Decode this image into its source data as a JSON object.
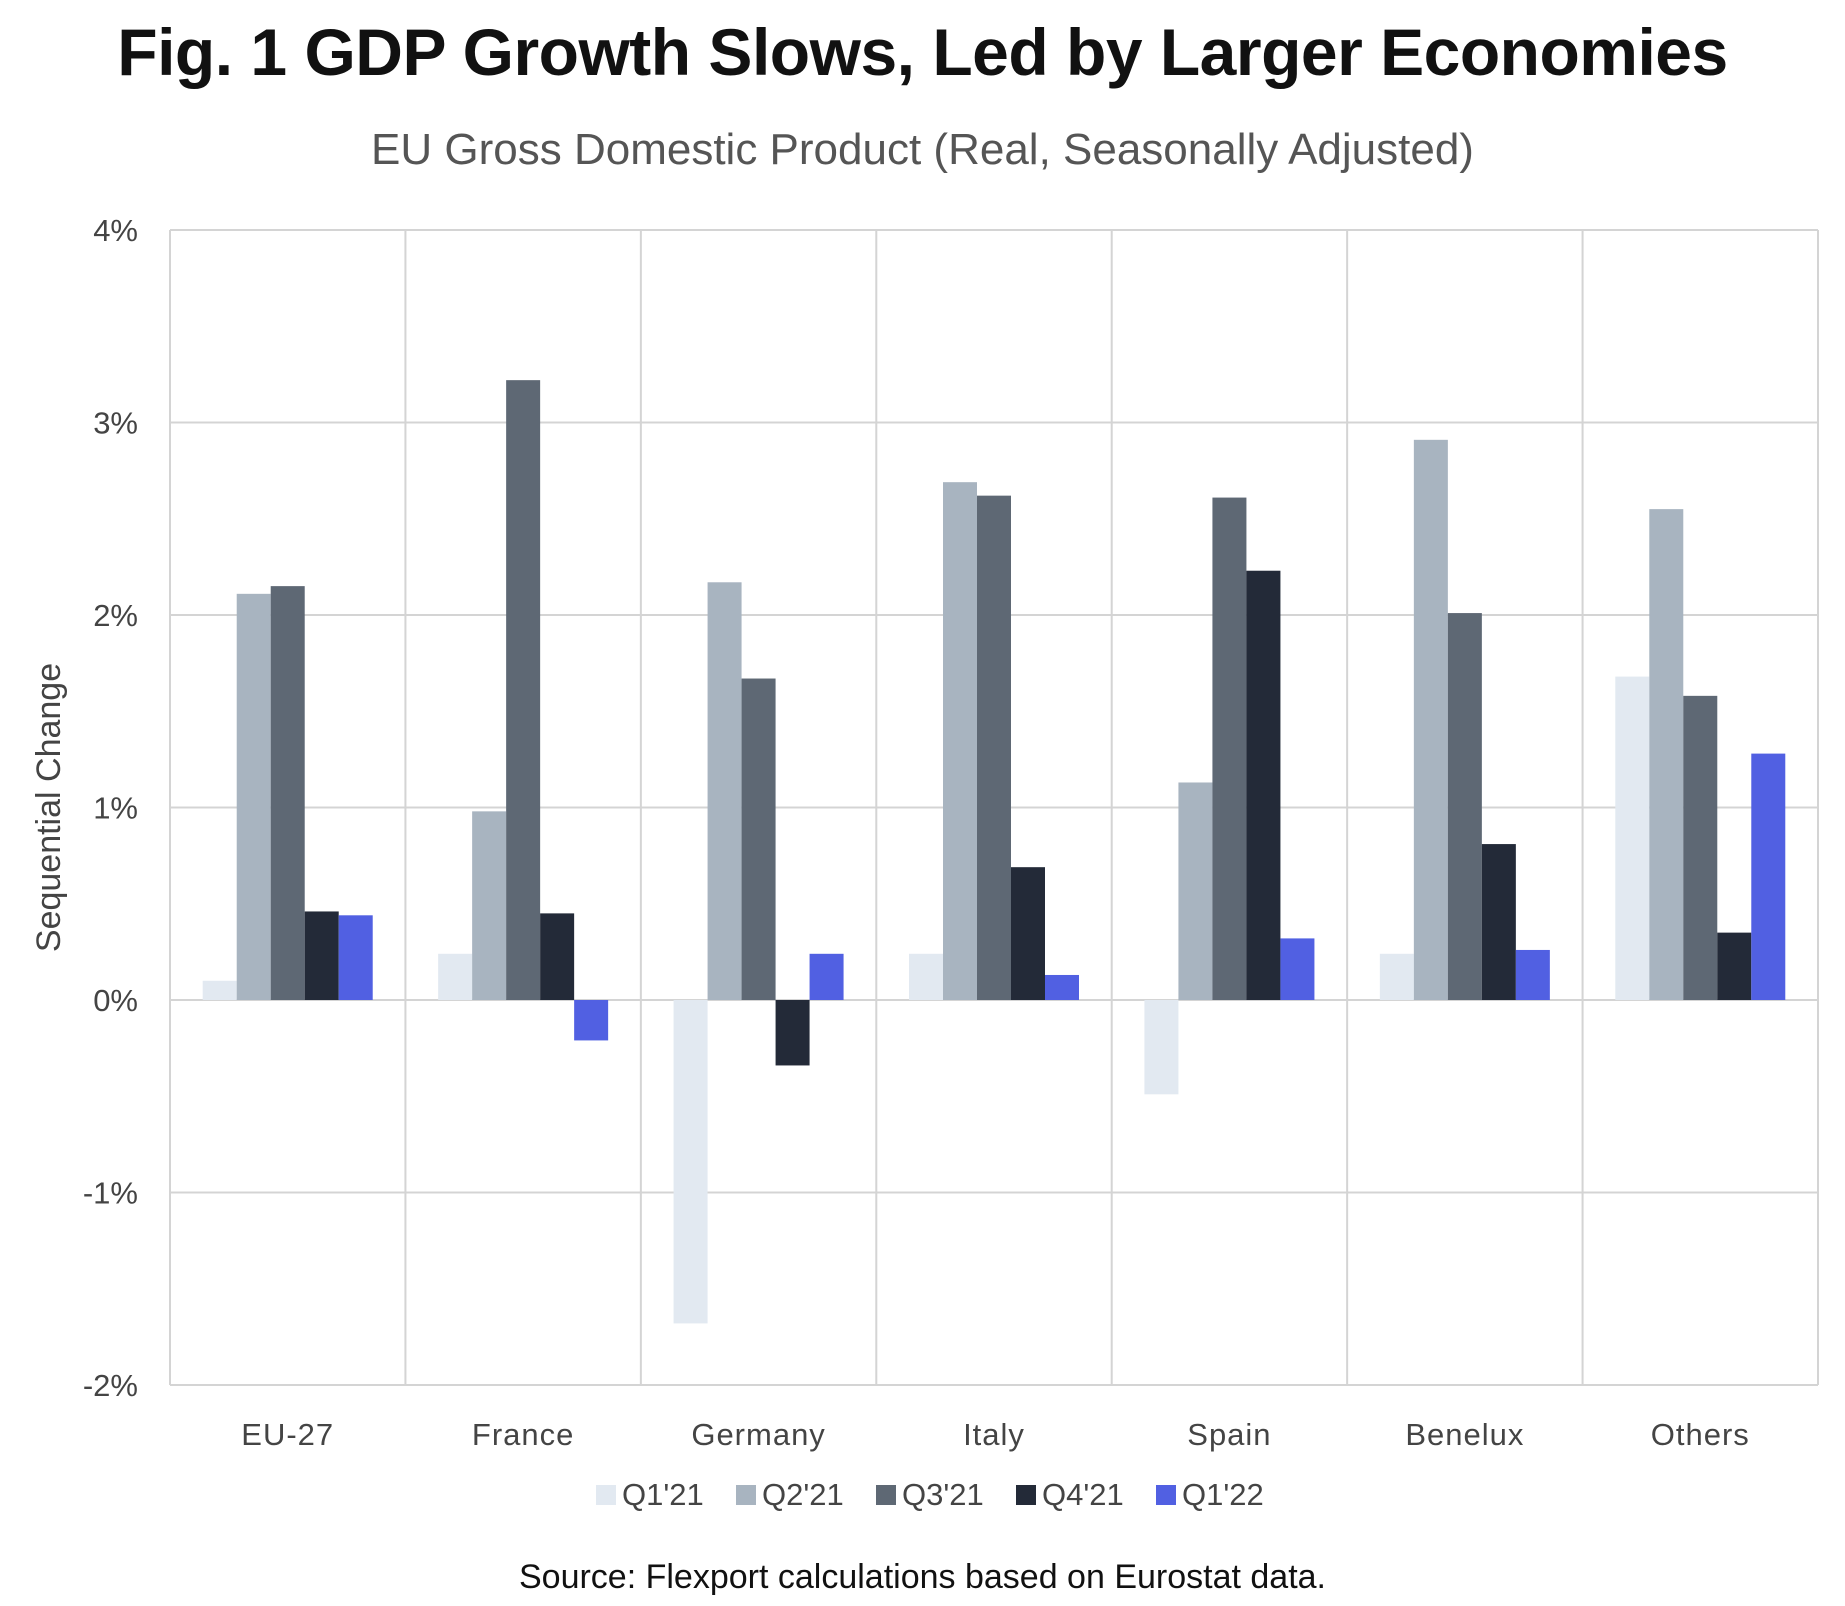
{
  "title": "Fig. 1 GDP Growth Slows, Led by Larger Economies",
  "subtitle": "EU Gross Domestic Product (Real, Seasonally Adjusted)",
  "source": "Source: Flexport calculations based on Eurostat data.",
  "colors": {
    "Q1'21": "#e2e9f1",
    "Q2'21": "#a8b4c0",
    "Q3'21": "#5e6874",
    "Q4'21": "#232a38",
    "Q1'22": "#5160e2",
    "grid": "#d4d4d4"
  },
  "chart_data": {
    "type": "bar",
    "title": "Fig. 1 GDP Growth Slows, Led by Larger Economies",
    "subtitle": "EU Gross Domestic Product (Real, Seasonally Adjusted)",
    "xlabel": "",
    "ylabel": "Sequential Change",
    "ylim": [
      -2,
      4
    ],
    "yticks": [
      4,
      3,
      2,
      1,
      0,
      -1,
      -2
    ],
    "ytick_labels": [
      "4%",
      "3%",
      "2%",
      "1%",
      "0%",
      "-1%",
      "-2%"
    ],
    "grid": true,
    "legend_position": "bottom",
    "categories": [
      "EU-27",
      "France",
      "Germany",
      "Italy",
      "Spain",
      "Benelux",
      "Others"
    ],
    "series": [
      {
        "name": "Q1'21",
        "values": [
          0.1,
          0.24,
          -1.68,
          0.24,
          -0.49,
          0.24,
          1.68
        ]
      },
      {
        "name": "Q2'21",
        "values": [
          2.11,
          0.98,
          2.17,
          2.69,
          1.13,
          2.91,
          2.55
        ]
      },
      {
        "name": "Q3'21",
        "values": [
          2.15,
          3.22,
          1.67,
          2.62,
          2.61,
          2.01,
          1.58
        ]
      },
      {
        "name": "Q4'21",
        "values": [
          0.46,
          0.45,
          -0.34,
          0.69,
          2.23,
          0.81,
          0.35
        ]
      },
      {
        "name": "Q1'22",
        "values": [
          0.44,
          -0.21,
          0.24,
          0.13,
          0.32,
          0.26,
          1.28
        ]
      }
    ]
  }
}
